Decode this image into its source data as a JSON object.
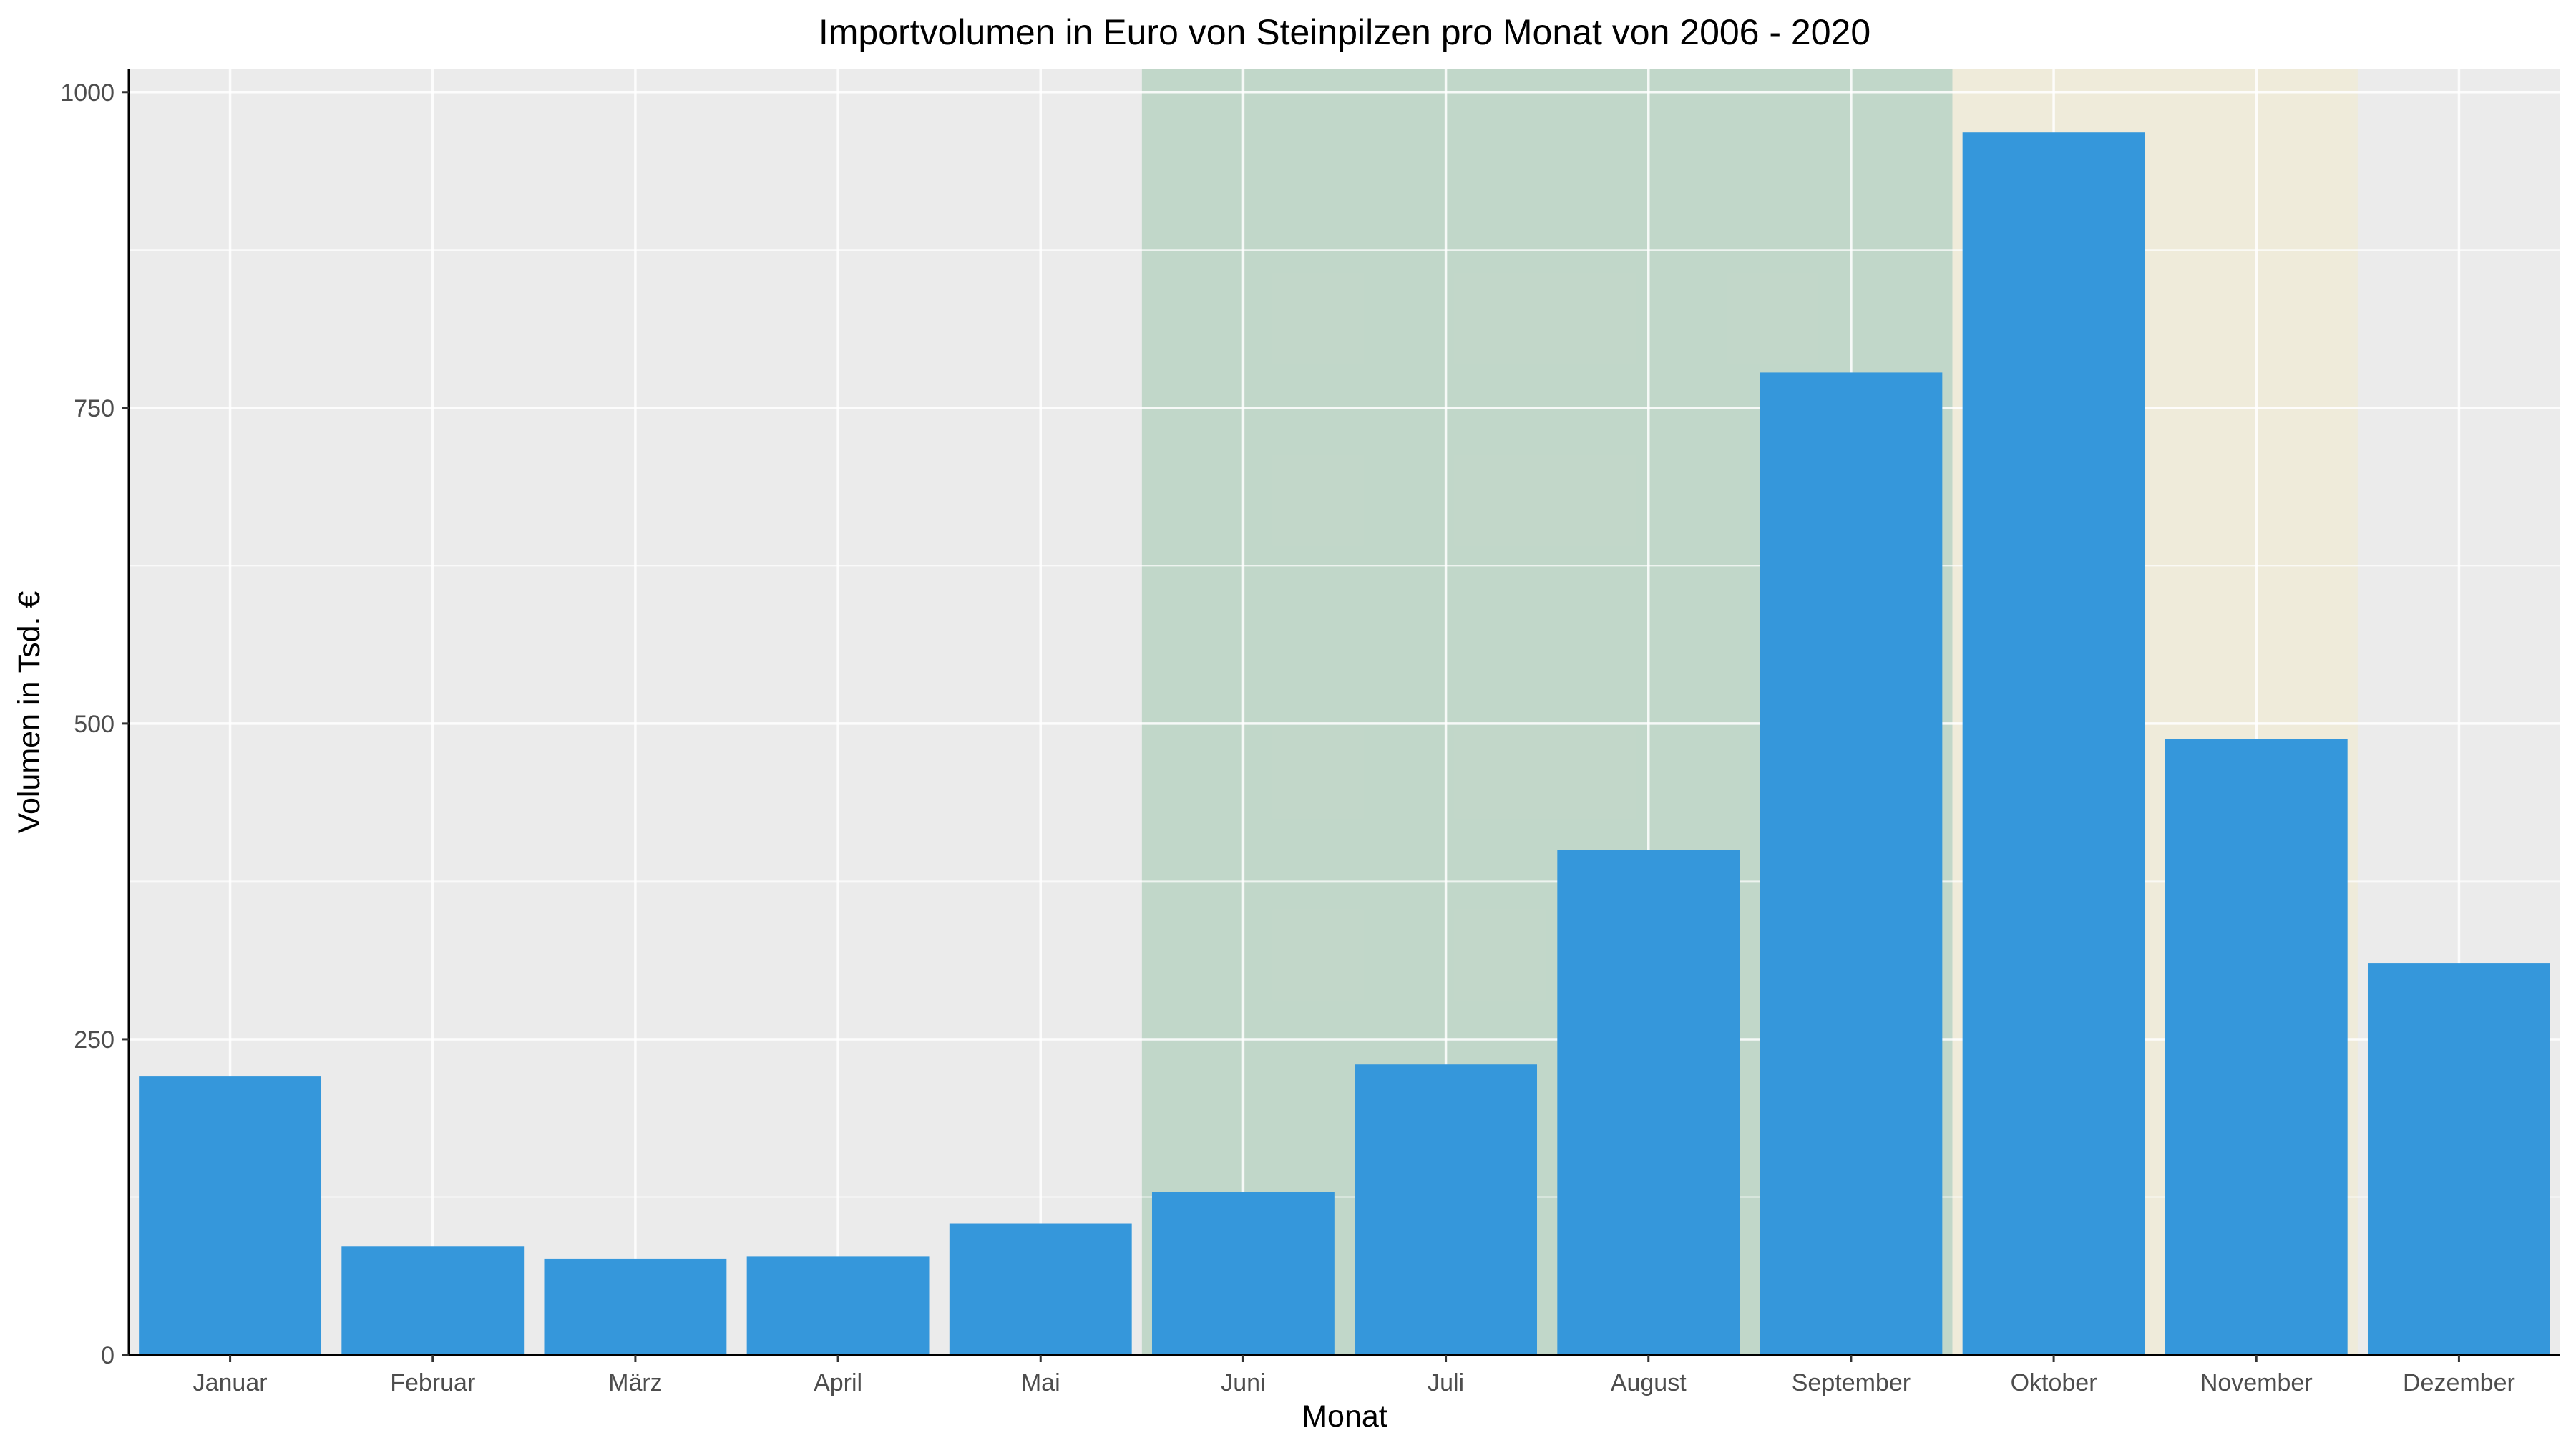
{
  "chart_data": {
    "type": "bar",
    "title": "Importvolumen in Euro von Steinpilzen pro Monat von 2006 - 2020",
    "xlabel": "Monat",
    "ylabel": "Volumen in Tsd. €",
    "categories": [
      "Januar",
      "Februar",
      "März",
      "April",
      "Mai",
      "Juni",
      "Juli",
      "August",
      "September",
      "Oktober",
      "November",
      "Dezember"
    ],
    "values": [
      221,
      86,
      76,
      78,
      104,
      129,
      230,
      400,
      778,
      968,
      488,
      310
    ],
    "ylim": [
      0,
      1018
    ],
    "yticks": [
      0,
      250,
      500,
      750,
      1000
    ],
    "yminor": [
      125,
      375,
      625,
      875
    ],
    "grid": true,
    "bar_color": "#3597db",
    "panel_background": "#ebebeb",
    "highlight_bands": [
      {
        "from": "Juni",
        "to": "September",
        "color": "#8fbf9f"
      },
      {
        "from": "Oktober",
        "to": "November",
        "color": "#f5ecc6"
      }
    ]
  }
}
